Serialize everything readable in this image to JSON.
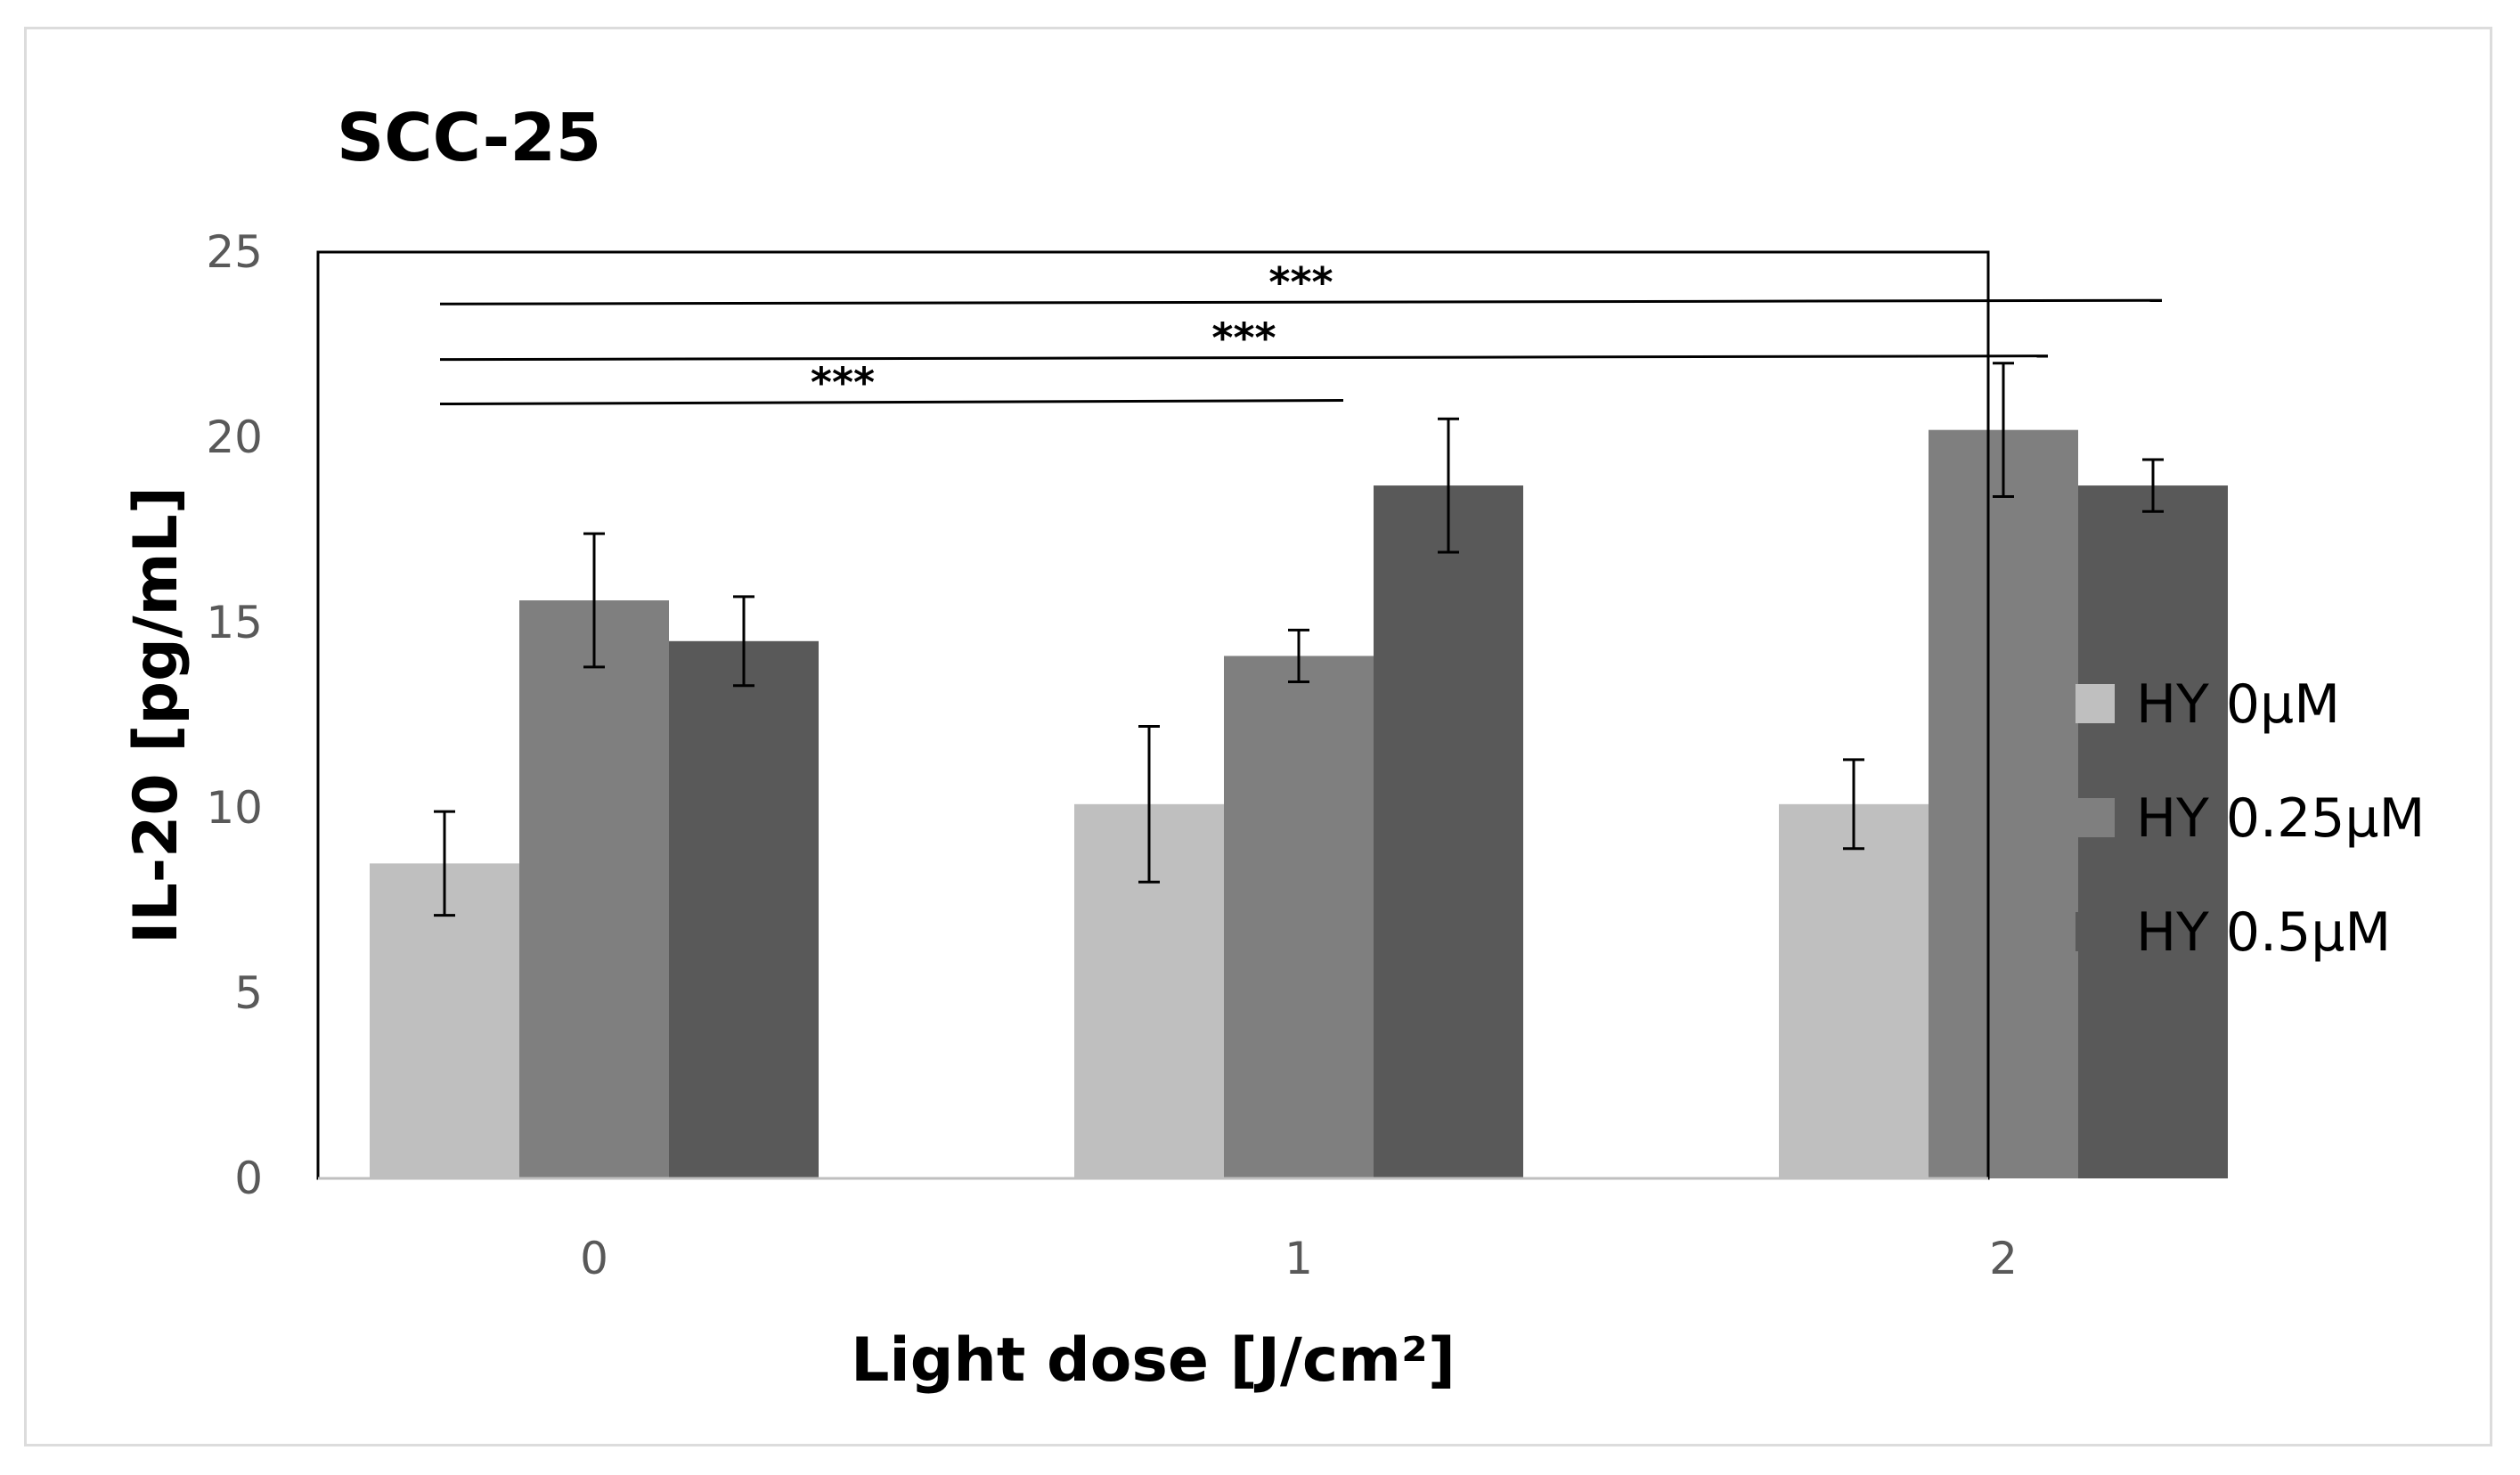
{
  "chart_data": {
    "type": "bar",
    "title": "SCC-25",
    "xlabel": "Light dose [J/cm²]",
    "ylabel": "IL-20 [pg/mL]",
    "ylim": [
      0,
      25
    ],
    "yticks": [
      0,
      5,
      10,
      15,
      20,
      25
    ],
    "categories": [
      "0",
      "1",
      "2"
    ],
    "series": [
      {
        "name": "HY 0µM",
        "color": "#bfbfbf",
        "values": [
          8.5,
          10.1,
          10.1
        ],
        "errors": [
          1.4,
          2.1,
          1.2
        ]
      },
      {
        "name": "HY 0.25µM",
        "color": "#7f7f7f",
        "values": [
          15.6,
          14.1,
          20.2
        ],
        "errors": [
          1.8,
          0.7,
          1.8
        ]
      },
      {
        "name": "HY 0.5µM",
        "color": "#595959",
        "values": [
          14.5,
          18.7,
          18.7
        ],
        "errors": [
          1.2,
          1.8,
          0.7
        ]
      }
    ],
    "significance": [
      {
        "label": "***",
        "from": "0",
        "to": "1",
        "y": 20.9
      },
      {
        "label": "***",
        "from": "0",
        "to": "2",
        "y": 22.1
      },
      {
        "label": "***",
        "from": "0",
        "to": "2",
        "y": 23.6
      }
    ],
    "legend": "right",
    "grid": false
  }
}
